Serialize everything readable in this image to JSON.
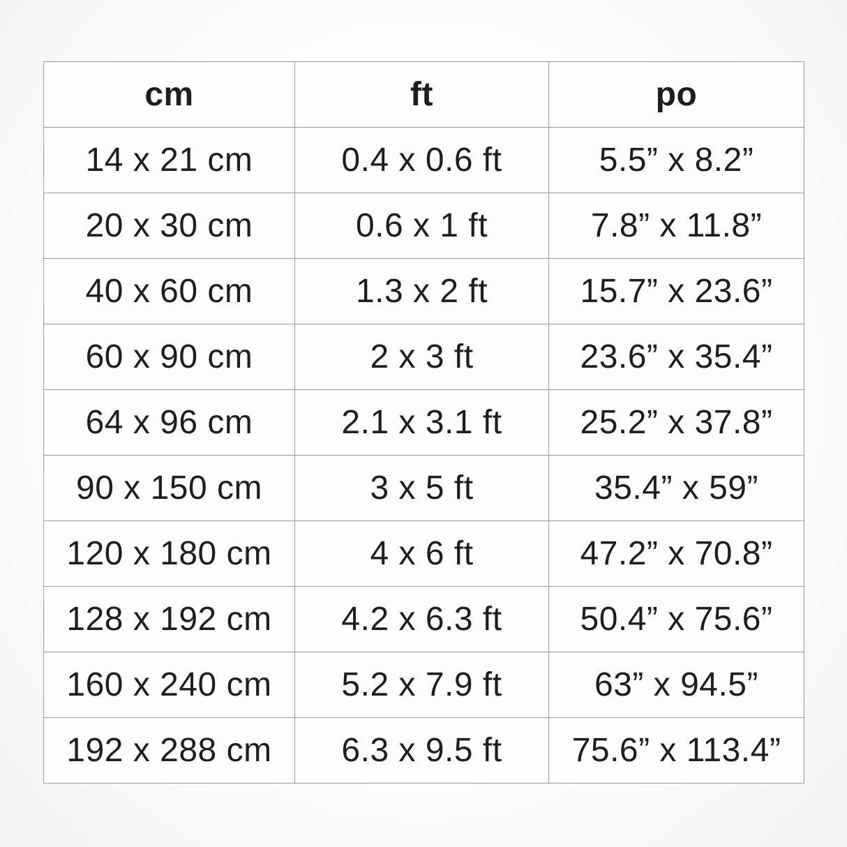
{
  "page": {
    "background_color": "#fdfdfd",
    "text_color": "#1e1e1e",
    "border_color": "#9a9a9a"
  },
  "table": {
    "columns": [
      {
        "label": "cm"
      },
      {
        "label": "ft"
      },
      {
        "label": "po"
      }
    ],
    "rows": [
      {
        "cm": "14 x 21 cm",
        "ft": "0.4 x 0.6 ft",
        "po": "5.5” x 8.2”"
      },
      {
        "cm": "20 x 30 cm",
        "ft": "0.6 x 1 ft",
        "po": "7.8” x 11.8”"
      },
      {
        "cm": "40 x 60 cm",
        "ft": "1.3 x 2 ft",
        "po": "15.7” x 23.6”"
      },
      {
        "cm": "60 x 90 cm",
        "ft": "2 x 3 ft",
        "po": "23.6” x 35.4”"
      },
      {
        "cm": "64 x 96 cm",
        "ft": "2.1 x 3.1 ft",
        "po": "25.2” x 37.8”"
      },
      {
        "cm": "90 x 150 cm",
        "ft": "3 x 5 ft",
        "po": "35.4” x 59”"
      },
      {
        "cm": "120 x 180 cm",
        "ft": "4 x 6 ft",
        "po": "47.2” x 70.8”"
      },
      {
        "cm": "128 x 192 cm",
        "ft": "4.2 x 6.3 ft",
        "po": "50.4” x 75.6”"
      },
      {
        "cm": "160 x 240 cm",
        "ft": "5.2 x 7.9 ft",
        "po": "63” x 94.5”"
      },
      {
        "cm": "192 x 288 cm",
        "ft": "6.3 x 9.5 ft",
        "po": "75.6” x 113.4”"
      }
    ]
  }
}
